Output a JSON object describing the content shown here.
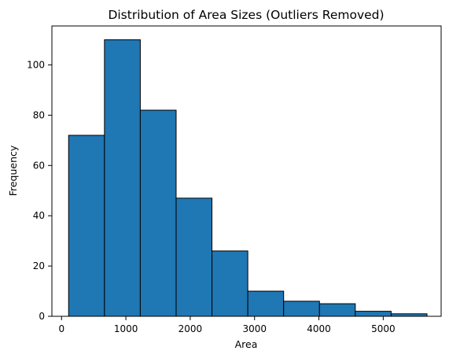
{
  "chart_data": {
    "type": "bar",
    "title": "Distribution of Area Sizes (Outliers Removed)",
    "xlabel": "Area",
    "ylabel": "Frequency",
    "xlim": [
      -150,
      5900
    ],
    "ylim": [
      0,
      115.5
    ],
    "bin_edges": [
      110,
      667,
      1224,
      1781,
      2338,
      2895,
      3452,
      4009,
      4566,
      5123,
      5680
    ],
    "values": [
      72,
      110,
      82,
      47,
      26,
      10,
      6,
      5,
      2,
      1
    ],
    "xticks": [
      0,
      1000,
      2000,
      3000,
      4000,
      5000
    ],
    "xtick_labels": [
      "0",
      "1000",
      "2000",
      "3000",
      "4000",
      "5000"
    ],
    "yticks": [
      0,
      20,
      40,
      60,
      80,
      100
    ],
    "ytick_labels": [
      "0",
      "20",
      "40",
      "60",
      "80",
      "100"
    ],
    "colors": {
      "bar_fill": "#1f77b4",
      "bar_edge": "#000000",
      "axis": "#000000"
    },
    "grid": false
  }
}
